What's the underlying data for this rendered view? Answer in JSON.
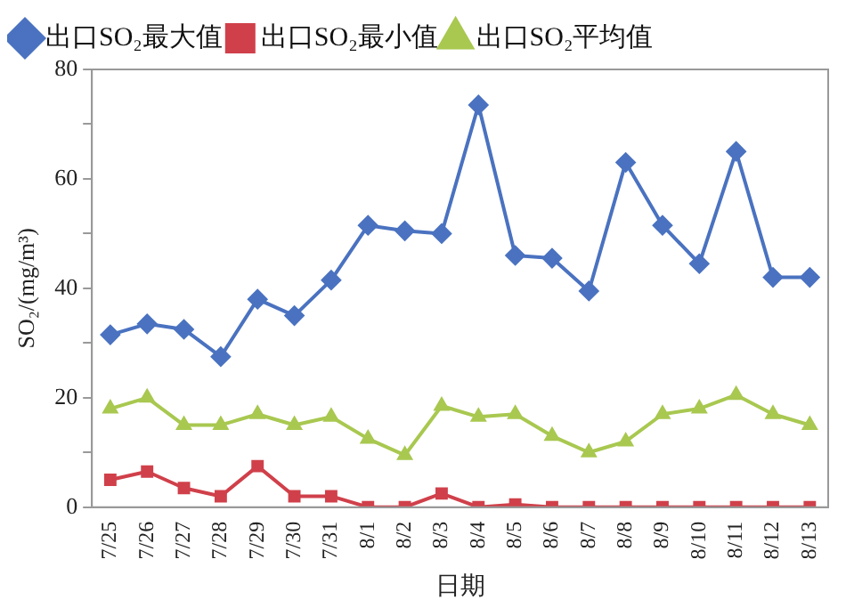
{
  "chart_data": {
    "type": "line",
    "xlabel": "日期",
    "ylabel": "SO₂/(mg/m³)",
    "categories": [
      "7/25",
      "7/26",
      "7/27",
      "7/28",
      "7/29",
      "7/30",
      "7/31",
      "8/1",
      "8/2",
      "8/3",
      "8/4",
      "8/5",
      "8/6",
      "8/7",
      "8/8",
      "8/9",
      "8/10",
      "8/11",
      "8/12",
      "8/13"
    ],
    "series": [
      {
        "name": "出口SO₂最大值",
        "color": "#4a72c0",
        "marker": "diamond",
        "values": [
          31.5,
          33.5,
          32.5,
          27.5,
          38,
          35,
          41.5,
          51.5,
          50.5,
          50,
          73.5,
          46,
          45.5,
          39.5,
          63,
          51.5,
          44.5,
          65,
          42,
          42
        ]
      },
      {
        "name": "出口SO₂最小值",
        "color": "#d0404a",
        "marker": "square",
        "values": [
          5,
          6.5,
          3.5,
          2,
          7.5,
          2,
          2,
          0,
          0,
          2.5,
          0,
          0.5,
          0,
          0,
          0,
          0,
          0,
          0,
          0,
          0
        ]
      },
      {
        "name": "出口SO₂平均值",
        "color": "#a8c850",
        "marker": "triangle",
        "values": [
          18,
          20,
          15,
          15,
          17,
          15,
          16.5,
          12.5,
          9.5,
          18.5,
          16.5,
          17,
          13,
          10,
          12,
          17,
          18,
          20.5,
          17,
          15
        ]
      }
    ],
    "ylim": [
      0,
      80
    ],
    "yticks": [
      0,
      {
        "value": 10,
        "label": null
      },
      20,
      {
        "value": 30,
        "label": null
      },
      40,
      {
        "value": 50,
        "label": null
      },
      60,
      {
        "value": 70,
        "label": null
      },
      80
    ],
    "grid": false,
    "legend": "top left",
    "line_style": "solid"
  }
}
